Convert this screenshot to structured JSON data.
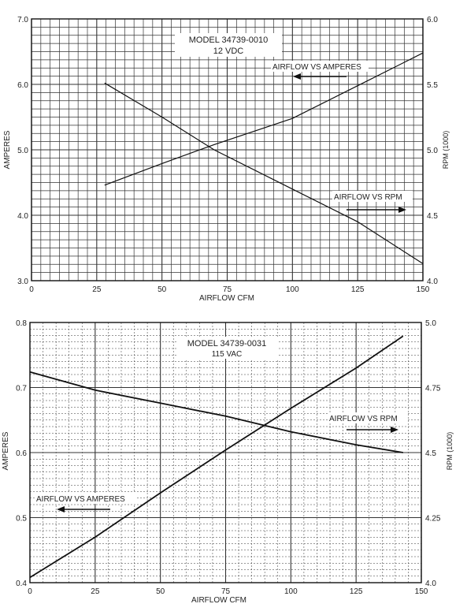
{
  "chart_data": [
    {
      "type": "line",
      "title": "MODEL 34739-0010",
      "subtitle": "12  VDC",
      "xlabel": "AIRFLOW CFM",
      "ylabel_left": "AMPERES",
      "ylabel_right": "RPM (1000)",
      "xlim": [
        0,
        150
      ],
      "ylim_left": [
        3.0,
        7.0
      ],
      "ylim_right": [
        4.0,
        6.0
      ],
      "x_ticks": [
        "0",
        "25",
        "50",
        "75",
        "100",
        "125",
        "150"
      ],
      "y_left_ticks": [
        "3.0",
        "4.0",
        "5.0",
        "6.0",
        "7.0"
      ],
      "y_right_ticks": [
        "4.0",
        "4.5",
        "5.0",
        "5.5",
        "6.0"
      ],
      "grid": true,
      "series": [
        {
          "name": "AIRFLOW VS AMPERES",
          "axis": "left",
          "x": [
            28,
            50,
            70,
            100,
            125,
            150
          ],
          "y": [
            4.46,
            4.79,
            5.08,
            5.48,
            5.98,
            6.48
          ]
        },
        {
          "name": "AIRFLOW VS RPM",
          "axis": "right",
          "x": [
            28,
            50,
            70,
            100,
            125,
            150
          ],
          "y": [
            5.51,
            5.25,
            5.0,
            4.7,
            4.45,
            4.13
          ]
        }
      ]
    },
    {
      "type": "line",
      "title": "MODEL  34739-0031",
      "subtitle": "115 VAC",
      "xlabel": "AIRFLOW CFM",
      "ylabel_left": "AMPERES",
      "ylabel_right": "RPM (1000)",
      "xlim": [
        0,
        150
      ],
      "ylim_left": [
        0.4,
        0.8
      ],
      "ylim_right": [
        4.0,
        5.0
      ],
      "x_ticks": [
        "0",
        "25",
        "50",
        "75",
        "100",
        "125",
        "150"
      ],
      "y_left_ticks": [
        "0.4",
        "0.5",
        "0.6",
        "0.7",
        "0.8"
      ],
      "y_right_ticks": [
        "4.0",
        "4.25",
        "4.5",
        "4.75",
        "5.0"
      ],
      "grid": true,
      "series": [
        {
          "name": "AIRFLOW VS RPM",
          "axis": "right",
          "x": [
            0,
            25,
            50,
            75,
            100,
            125,
            143
          ],
          "y": [
            4.81,
            4.74,
            4.69,
            4.64,
            4.58,
            4.53,
            4.5
          ]
        },
        {
          "name": "AIRFLOW VS AMPERES",
          "axis": "left",
          "x": [
            0,
            25,
            50,
            75,
            100,
            125,
            143
          ],
          "y": [
            0.408,
            0.47,
            0.538,
            0.604,
            0.668,
            0.73,
            0.779
          ]
        }
      ]
    }
  ]
}
